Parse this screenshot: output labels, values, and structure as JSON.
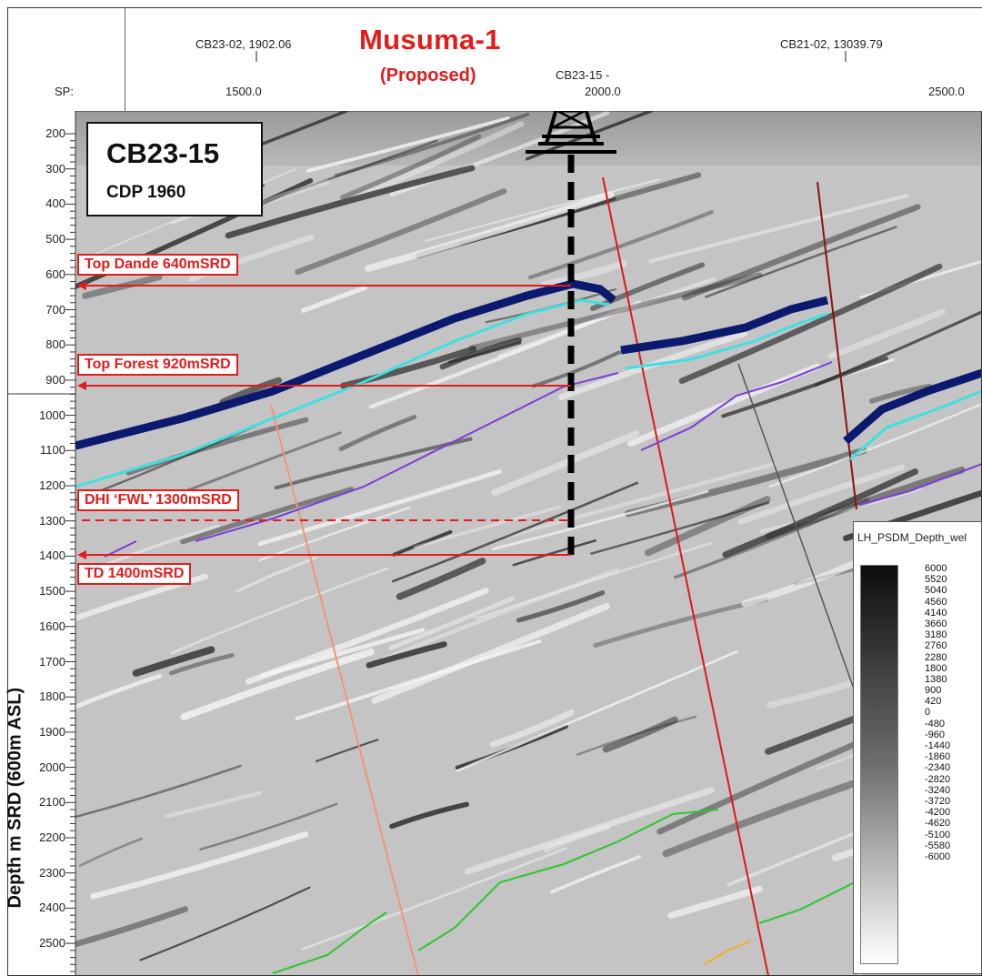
{
  "title": "Musuma-1",
  "subtitle": "(Proposed)",
  "header": {
    "well_refs": [
      {
        "label": "CB23-02, 1902.06"
      },
      {
        "label": "CB23-15 -"
      },
      {
        "label": "CB21-02, 13039.79"
      }
    ],
    "sp_label": "SP:",
    "sp_ticks": [
      "1500.0",
      "2000.0",
      "2500.0"
    ]
  },
  "infobox": {
    "line": "CB23-15",
    "cdp": "CDP 1960"
  },
  "depth_axis": {
    "title": "Depth m SRD (600m ASL)",
    "ticks": [
      "200",
      "300",
      "400",
      "500",
      "600",
      "700",
      "800",
      "900",
      "1000",
      "1100",
      "1200",
      "1300",
      "1400",
      "1500",
      "1600",
      "1700",
      "1800",
      "1900",
      "2000",
      "2100",
      "2200",
      "2300",
      "2400",
      "2500"
    ]
  },
  "horizons": [
    {
      "label": "Top Dande  640mSRD",
      "depth_m": 640
    },
    {
      "label": "Top Forest  920mSRD",
      "depth_m": 920
    },
    {
      "label": "DHI ‘FWL’  1300mSRD",
      "depth_m": 1300
    },
    {
      "label": "TD  1400mSRD",
      "depth_m": 1400
    }
  ],
  "legend": {
    "title": "LH_PSDM_Depth_wel",
    "values": [
      "6000",
      "5520",
      "5040",
      "4560",
      "4140",
      "3660",
      "3180",
      "2760",
      "2280",
      "1800",
      "1380",
      "900",
      "420",
      "0",
      "-480",
      "-960",
      "-1440",
      "-1860",
      "-2340",
      "-2820",
      "-3240",
      "-3720",
      "-4200",
      "-4620",
      "-5100",
      "-5580",
      "-6000"
    ]
  },
  "colors": {
    "annotation_red": "#e31b1b",
    "horizon_navy": "#0b1a6e",
    "horizon_cyan": "#3fe0e0",
    "horizon_purple": "#7a3fd6",
    "horizon_green": "#2ec62e",
    "horizon_orange": "#f0b020",
    "fault_red": "#e01818",
    "fault_salmon": "#f2937a",
    "fault_darkred": "#8a1010",
    "fault_grey": "#555555"
  },
  "icons": [
    "drilling-rig-icon"
  ]
}
